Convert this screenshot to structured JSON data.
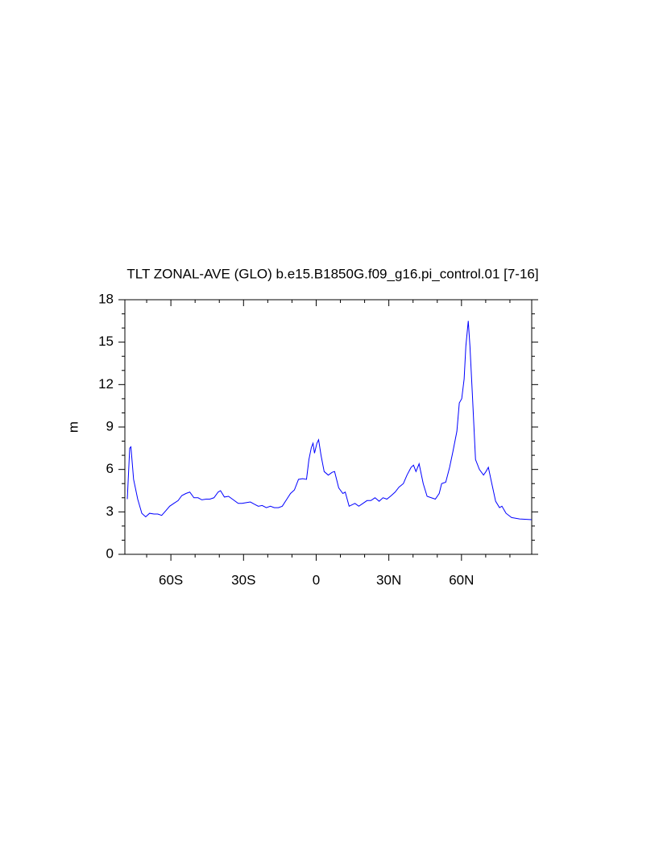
{
  "chart_data": {
    "type": "line",
    "title": "TLT ZONAL-AVE (GLO) b.e15.B1850G.f09_g16.pi_control.01 [7-16]",
    "y_label": "m",
    "xlim": [
      -79,
      89
    ],
    "ylim": [
      0,
      18
    ],
    "xticks": [
      {
        "value": -60,
        "label": "60S"
      },
      {
        "value": -30,
        "label": "30S"
      },
      0,
      {
        "value": 30,
        "label": "30N"
      },
      {
        "value": 60,
        "label": "60N"
      }
    ],
    "xminorticks": [
      -70,
      -50,
      -40,
      -20,
      -10,
      10,
      20,
      40,
      50,
      70,
      80
    ],
    "yticks": [
      0,
      3,
      6,
      9,
      12,
      15,
      18
    ],
    "yminorticks": [
      1,
      2,
      4,
      5,
      7,
      8,
      10,
      11,
      13,
      14,
      16,
      17
    ],
    "grid": false,
    "series": [
      {
        "name": "TLT",
        "color": "#0000ff",
        "x": [
          -78,
          -77,
          -76.5,
          -75.4,
          -73.7,
          -72,
          -70.4,
          -68.8,
          -67,
          -65.4,
          -63.8,
          -62,
          -60.5,
          -58.8,
          -57,
          -55.5,
          -53.8,
          -52.2,
          -50.5,
          -48.8,
          -47.2,
          -45.5,
          -43.9,
          -42.2,
          -40.5,
          -39.5,
          -37.9,
          -36.2,
          -34.6,
          -32.2,
          -30.6,
          -28.9,
          -27.2,
          -25.6,
          -23.9,
          -22.3,
          -20.6,
          -18.9,
          -17.3,
          -15.6,
          -14,
          -12.3,
          -10.6,
          -9,
          -7.3,
          -5.6,
          -4,
          -3,
          -2,
          -1.3,
          -0.7,
          0.3,
          1,
          2,
          3.3,
          5,
          6.6,
          7.6,
          9.3,
          11,
          12,
          13.6,
          16,
          17.6,
          19.3,
          21,
          22.6,
          24.3,
          26,
          27.6,
          29.2,
          31,
          32.6,
          34.2,
          36,
          37.5,
          39.2,
          40.2,
          41.2,
          42.5,
          44.2,
          45.8,
          47.5,
          49.2,
          50.8,
          51.8,
          53.5,
          55.1,
          56.5,
          58.1,
          59.1,
          60.1,
          61.1,
          61.8,
          62.8,
          63.5,
          64.5,
          65.8,
          67.4,
          69.1,
          70.1,
          71.1,
          72.4,
          74.1,
          75.7,
          76.7,
          78.4,
          80.7,
          84,
          89
        ],
        "values": [
          3.9,
          7.5,
          7.6,
          5.3,
          3.9,
          2.9,
          2.65,
          2.9,
          2.85,
          2.85,
          2.75,
          3.1,
          3.4,
          3.6,
          3.8,
          4.15,
          4.3,
          4.4,
          4.0,
          4.0,
          3.85,
          3.9,
          3.9,
          4.0,
          4.4,
          4.5,
          4.05,
          4.1,
          3.9,
          3.6,
          3.6,
          3.65,
          3.7,
          3.55,
          3.4,
          3.45,
          3.3,
          3.4,
          3.3,
          3.3,
          3.4,
          3.85,
          4.3,
          4.55,
          5.3,
          5.35,
          5.3,
          6.7,
          7.55,
          7.85,
          7.15,
          7.85,
          8.1,
          7.0,
          5.85,
          5.6,
          5.8,
          5.85,
          4.7,
          4.3,
          4.4,
          3.4,
          3.6,
          3.4,
          3.6,
          3.8,
          3.8,
          4.0,
          3.75,
          4.0,
          3.9,
          4.15,
          4.4,
          4.75,
          5.0,
          5.6,
          6.15,
          6.3,
          5.85,
          6.4,
          5.0,
          4.1,
          4.0,
          3.9,
          4.3,
          5.0,
          5.1,
          6.15,
          7.3,
          8.7,
          10.7,
          11,
          12.4,
          14.7,
          16.5,
          14.7,
          11.3,
          6.7,
          6.0,
          5.6,
          5.85,
          6.15,
          5.1,
          3.75,
          3.3,
          3.4,
          2.9,
          2.6,
          2.5,
          2.45
        ]
      }
    ]
  }
}
